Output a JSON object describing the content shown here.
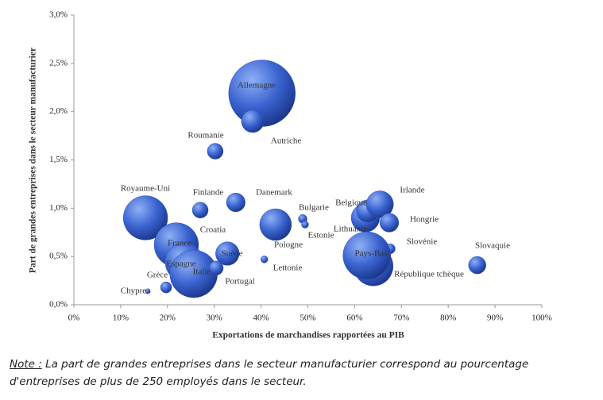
{
  "chart_data": {
    "type": "bubble",
    "xlabel": "Exportations de marchandises rapportées au PIB",
    "ylabel": "Part de grandes entreprises dans le secteur manufacturier",
    "xlim": [
      0,
      100
    ],
    "ylim": [
      0,
      3
    ],
    "xticks": [
      {
        "value": 0,
        "label": "0%"
      },
      {
        "value": 10,
        "label": "10%"
      },
      {
        "value": 20,
        "label": "20%"
      },
      {
        "value": 30,
        "label": "30%"
      },
      {
        "value": 40,
        "label": "40%"
      },
      {
        "value": 50,
        "label": "50%"
      },
      {
        "value": 60,
        "label": "60%"
      },
      {
        "value": 70,
        "label": "70%"
      },
      {
        "value": 80,
        "label": "80%"
      },
      {
        "value": 90,
        "label": "90%"
      },
      {
        "value": 100,
        "label": "100%"
      }
    ],
    "yticks": [
      {
        "value": 0,
        "label": "0,0%"
      },
      {
        "value": 0.5,
        "label": "0,5%"
      },
      {
        "value": 1,
        "label": "1,0%"
      },
      {
        "value": 1.5,
        "label": "1,5%"
      },
      {
        "value": 2,
        "label": "2,0%"
      },
      {
        "value": 2.5,
        "label": "2,5%"
      },
      {
        "value": 3,
        "label": "3,0%"
      }
    ],
    "color": "#2d52c0",
    "points": [
      {
        "name": "Allemagne",
        "x": 40.2,
        "y": 2.19,
        "size": 176
      },
      {
        "name": "Autriche",
        "x": 38.2,
        "y": 1.9,
        "size": 20
      },
      {
        "name": "Roumanie",
        "x": 30.2,
        "y": 1.59,
        "size": 10
      },
      {
        "name": "Royaume-Uni",
        "x": 15.3,
        "y": 0.9,
        "size": 78
      },
      {
        "name": "Finlande",
        "x": 27.0,
        "y": 0.98,
        "size": 10
      },
      {
        "name": "Danemark",
        "x": 34.6,
        "y": 1.06,
        "size": 14
      },
      {
        "name": "Croatia",
        "x": 23.8,
        "y": 0.78,
        "size": 2
      },
      {
        "name": "France",
        "x": 21.9,
        "y": 0.62,
        "size": 78
      },
      {
        "name": "Espagne",
        "x": 23.6,
        "y": 0.44,
        "size": 58
      },
      {
        "name": "Italie",
        "x": 25.6,
        "y": 0.32,
        "size": 90
      },
      {
        "name": "Suède",
        "x": 32.8,
        "y": 0.53,
        "size": 22
      },
      {
        "name": "Portugal",
        "x": 30.4,
        "y": 0.38,
        "size": 8
      },
      {
        "name": "Grèce",
        "x": 19.7,
        "y": 0.18,
        "size": 5
      },
      {
        "name": "Chypre",
        "x": 15.8,
        "y": 0.14,
        "size": 1
      },
      {
        "name": "Pologne",
        "x": 43.1,
        "y": 0.83,
        "size": 40
      },
      {
        "name": "Lettonie",
        "x": 40.7,
        "y": 0.47,
        "size": 2
      },
      {
        "name": "Bulgarie",
        "x": 48.9,
        "y": 0.89,
        "size": 3
      },
      {
        "name": "Estonie",
        "x": 49.4,
        "y": 0.83,
        "size": 2
      },
      {
        "name": "Lithuanie",
        "x": 62.3,
        "y": 0.9,
        "size": 32
      },
      {
        "name": "Belgique",
        "x": 62.8,
        "y": 0.97,
        "size": 20
      },
      {
        "name": "Irlande",
        "x": 65.4,
        "y": 1.04,
        "size": 29
      },
      {
        "name": "Hongrie",
        "x": 67.4,
        "y": 0.85,
        "size": 14
      },
      {
        "name": "Slovénie",
        "x": 67.6,
        "y": 0.58,
        "size": 4
      },
      {
        "name": "République tchèque",
        "x": 64.0,
        "y": 0.4,
        "size": 62
      },
      {
        "name": "Pays-Bas",
        "x": 62.6,
        "y": 0.51,
        "size": 90
      },
      {
        "name": "Slovaquie",
        "x": 86.2,
        "y": 0.41,
        "size": 12
      }
    ],
    "note_label": "Note :",
    "note": "La part de grandes entreprises dans le secteur manufacturier correspond au pourcentage d'entreprises de plus de 250 employés dans le secteur."
  }
}
